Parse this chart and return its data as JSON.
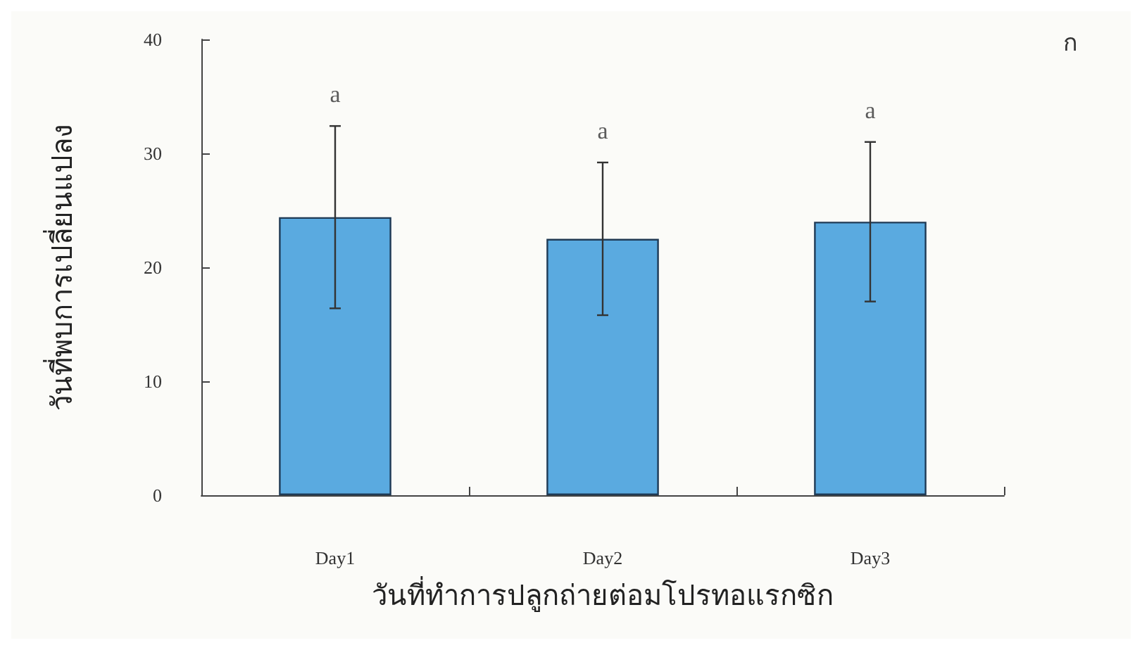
{
  "chart_data": {
    "type": "bar",
    "xlabel": "วันที่ทำการปลูกถ่ายต่อมโปรทอแรกซิก",
    "ylabel": "วันที่พบการเปลี่ยนแปลง",
    "categories": [
      "Day1",
      "Day2",
      "Day3"
    ],
    "values": [
      24.4,
      22.5,
      24.0
    ],
    "errors": [
      8,
      6.7,
      7
    ],
    "color": "#5aaae0",
    "ylim": [
      0,
      40
    ],
    "yticks": [
      0,
      10,
      20,
      30,
      40
    ],
    "grid": false,
    "annotations": [
      "a",
      "a",
      "a",
      "ก"
    ]
  }
}
